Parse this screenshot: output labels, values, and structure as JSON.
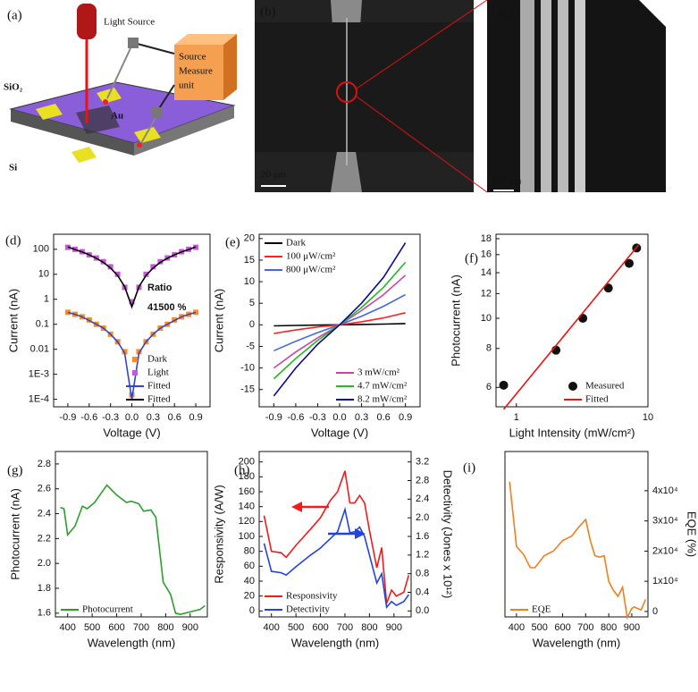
{
  "panels": {
    "a": {
      "label": "(a)",
      "light_source": "Light Source",
      "smu": [
        "Source",
        "Measure",
        "unit"
      ],
      "sio2": "SiO₂",
      "au": "Au",
      "si": "Si"
    },
    "b": {
      "label": "(b)",
      "scale": "20 μm"
    },
    "c": {
      "label": "(c)",
      "scale": "400 nm"
    }
  },
  "chart_data": [
    {
      "type": "line",
      "panel_label": "(d)",
      "xlabel": "Voltage (V)",
      "ylabel": "Current (nA)",
      "ylog": true,
      "xlim": [
        -1.1,
        1.1
      ],
      "ylim": [
        5e-05,
        400
      ],
      "xticks": [
        -0.9,
        -0.6,
        -0.3,
        {
          "value": 0,
          "label": "0.0"
        },
        0.3,
        0.6,
        0.9
      ],
      "yticks": [
        {
          "value": 0.0001,
          "label": "1E-4"
        },
        {
          "value": 0.001,
          "label": "1E-3"
        },
        0.01,
        0.1,
        1,
        10,
        100
      ],
      "annotations": [
        "Ratio",
        "41500 %"
      ],
      "legend_loc": "lower right",
      "x": [
        -0.9,
        -0.8,
        -0.7,
        -0.6,
        -0.5,
        -0.4,
        -0.3,
        -0.2,
        -0.1,
        0,
        0.1,
        0.2,
        0.3,
        0.4,
        0.5,
        0.6,
        0.7,
        0.8,
        0.9
      ],
      "series": [
        {
          "name": "Dark",
          "color": "#ff8c1a",
          "mode": "markers",
          "values": [
            0.3,
            0.25,
            0.2,
            0.15,
            0.1,
            0.07,
            0.04,
            0.02,
            0.008,
            0.00015,
            0.008,
            0.02,
            0.04,
            0.07,
            0.1,
            0.15,
            0.2,
            0.25,
            0.3
          ]
        },
        {
          "name": "Light",
          "color": "#cc55dd",
          "mode": "markers",
          "values": [
            120,
            100,
            80,
            60,
            45,
            32,
            20,
            10,
            3,
            0.8,
            3,
            10,
            20,
            32,
            45,
            60,
            80,
            100,
            120
          ]
        },
        {
          "name": "Fitted",
          "color": "#3344cc",
          "mode": "lines",
          "values": [
            0.3,
            0.25,
            0.2,
            0.14,
            0.1,
            0.07,
            0.04,
            0.02,
            0.007,
            0.0001,
            0.007,
            0.02,
            0.04,
            0.07,
            0.1,
            0.14,
            0.2,
            0.25,
            0.3
          ]
        },
        {
          "name": "Fitted",
          "color": "#000000",
          "mode": "lines",
          "values": [
            125,
            98,
            78,
            60,
            44,
            30,
            18,
            9,
            3.2,
            0.5,
            3.2,
            9,
            18,
            30,
            44,
            60,
            78,
            98,
            125
          ]
        }
      ]
    },
    {
      "type": "line",
      "panel_label": "(e)",
      "xlabel": "Voltage (V)",
      "ylabel": "Current (nA)",
      "xlim": [
        -1.1,
        1.1
      ],
      "ylim": [
        -19,
        21
      ],
      "xticks": [
        -0.9,
        -0.6,
        -0.3,
        {
          "value": 0,
          "label": "0.0"
        },
        0.3,
        0.6,
        0.9
      ],
      "yticks": [
        -15,
        -10,
        -5,
        0,
        5,
        10,
        15,
        20
      ],
      "x": [
        -0.9,
        -0.6,
        -0.3,
        0,
        0.3,
        0.6,
        0.9
      ],
      "series": [
        {
          "name": "Dark",
          "color": "#000000",
          "mode": "lines",
          "legend_loc": "upper left",
          "values": [
            -0.25,
            -0.15,
            -0.05,
            0,
            0.08,
            0.18,
            0.3
          ]
        },
        {
          "name": "100 μW/cm²",
          "color": "#ff2020",
          "mode": "lines",
          "legend_loc": "upper left",
          "values": [
            -2,
            -1.2,
            -0.5,
            0,
            0.7,
            1.6,
            2.8
          ]
        },
        {
          "name": "800 μW/cm²",
          "color": "#4169e1",
          "mode": "lines",
          "legend_loc": "upper left",
          "values": [
            -6,
            -3.8,
            -1.8,
            0,
            2,
            4.3,
            7
          ]
        },
        {
          "name": "3 mW/cm²",
          "color": "#cc44aa",
          "mode": "lines",
          "legend_loc": "lower right",
          "values": [
            -10,
            -6.3,
            -3,
            0,
            3.3,
            7,
            11.5
          ]
        },
        {
          "name": "4.7 mW/cm²",
          "color": "#22bb22",
          "mode": "lines",
          "legend_loc": "lower right",
          "values": [
            -12.5,
            -7.8,
            -3.6,
            0,
            4,
            8.7,
            14.5
          ]
        },
        {
          "name": "8.2 mW/cm²",
          "color": "#0a0a8c",
          "mode": "lines",
          "legend_loc": "lower right",
          "values": [
            -16.5,
            -10,
            -4.5,
            0,
            5,
            11,
            19
          ]
        }
      ]
    },
    {
      "type": "line",
      "panel_label": "(f)",
      "xlabel": "Light Intensity (mW/cm²)",
      "ylabel": "Photocurrent (nA)",
      "xlog": true,
      "ylog": true,
      "xlim": [
        0.7,
        10
      ],
      "ylim": [
        5.2,
        18.6
      ],
      "xticks": [
        1,
        10
      ],
      "yticks": [
        6,
        8,
        10,
        12,
        14,
        16,
        18
      ],
      "legend_loc": "lower right",
      "series": [
        {
          "name": "Measured",
          "color": "#111111",
          "mode": "markers",
          "marker": "circle",
          "x": [
            0.8,
            2,
            3.2,
            5,
            7.2,
            8.2
          ],
          "values": [
            6.1,
            7.9,
            10,
            12.5,
            15,
            16.8
          ]
        },
        {
          "name": "Fitted",
          "color": "#ee1111",
          "mode": "lines",
          "x": [
            0.8,
            8.5
          ],
          "values": [
            5.1,
            17.2
          ]
        }
      ]
    },
    {
      "type": "line",
      "panel_label": "(g)",
      "xlabel": "Wavelength (nm)",
      "ylabel": "Photocurrent (nA)",
      "xlim": [
        350,
        970
      ],
      "ylim": [
        1.57,
        2.9
      ],
      "xticks": [
        400,
        500,
        600,
        700,
        800,
        900
      ],
      "yticks": [
        1.6,
        1.8,
        {
          "value": 2,
          "label": "2.0"
        },
        2.2,
        2.4,
        2.6,
        2.8
      ],
      "legend_loc": "lower left",
      "x": [
        370,
        385,
        400,
        430,
        460,
        480,
        510,
        560,
        600,
        640,
        660,
        690,
        710,
        740,
        760,
        790,
        820,
        840,
        860,
        900,
        940,
        960
      ],
      "series": [
        {
          "name": "Photocurrent",
          "color": "#2aa02a",
          "mode": "lines",
          "values": [
            2.45,
            2.44,
            2.23,
            2.3,
            2.46,
            2.44,
            2.49,
            2.63,
            2.55,
            2.49,
            2.5,
            2.48,
            2.42,
            2.43,
            2.37,
            1.85,
            1.75,
            1.6,
            1.59,
            1.61,
            1.63,
            1.66
          ]
        }
      ]
    },
    {
      "type": "line",
      "panel_label": "(h)",
      "xlabel": "Wavelength (nm)",
      "ylabel": "Responsivity (A/W)",
      "y2label": "Detectivity (Jones x 10¹²)",
      "xlim": [
        350,
        970
      ],
      "ylim": [
        -8,
        214
      ],
      "y2lim": [
        -0.128,
        3.424
      ],
      "xticks": [
        400,
        500,
        600,
        700,
        800,
        900
      ],
      "yticks": [
        0,
        20,
        40,
        60,
        80,
        100,
        120,
        140,
        160,
        180,
        200
      ],
      "y2ticks": [
        {
          "value": 0,
          "label": "0.0"
        },
        0.4,
        0.8,
        1.2,
        1.6,
        {
          "value": 2,
          "label": "2.0"
        },
        2.4,
        2.8,
        3.2
      ],
      "legend_loc": "lower left",
      "x": [
        370,
        400,
        440,
        460,
        500,
        560,
        600,
        640,
        670,
        700,
        720,
        740,
        760,
        780,
        800,
        830,
        850,
        870,
        890,
        910,
        940,
        960
      ],
      "series": [
        {
          "name": "Responsivity",
          "color": "#ee1c1c",
          "mode": "lines",
          "values": [
            128,
            80,
            78,
            72,
            88,
            110,
            125,
            148,
            160,
            188,
            145,
            145,
            155,
            145,
            108,
            58,
            85,
            10,
            28,
            20,
            25,
            48
          ]
        },
        {
          "name": "Detectivity",
          "color": "#2244dd",
          "mode": "lines",
          "axis": "y2",
          "values": [
            1.45,
            0.85,
            0.82,
            0.77,
            0.95,
            1.2,
            1.35,
            1.55,
            1.7,
            2.18,
            1.68,
            1.7,
            1.8,
            1.6,
            1.2,
            0.6,
            0.8,
            0.08,
            0.2,
            0.12,
            0.2,
            0.35
          ]
        }
      ]
    },
    {
      "type": "line",
      "panel_label": "(i)",
      "xlabel": "Wavelength (nm)",
      "ylabel": "EQE (%)",
      "yaxis": "right",
      "xlim": [
        350,
        970
      ],
      "ylim": [
        -1800,
        53000
      ],
      "xticks": [
        400,
        500,
        600,
        700,
        800,
        900
      ],
      "yticks": [
        0,
        {
          "value": 10000,
          "label": "1x10⁴"
        },
        {
          "value": 20000,
          "label": "2x10⁴"
        },
        {
          "value": 30000,
          "label": "3x10⁴"
        },
        {
          "value": 40000,
          "label": "4x10⁴"
        }
      ],
      "legend_loc": "lower left",
      "x": [
        370,
        400,
        430,
        460,
        480,
        520,
        560,
        600,
        640,
        670,
        700,
        720,
        740,
        760,
        780,
        800,
        820,
        840,
        860,
        880,
        900,
        910,
        940,
        960
      ],
      "series": [
        {
          "name": "EQE",
          "color": "#f07f1e",
          "mode": "lines",
          "values": [
            43000,
            21500,
            19000,
            14500,
            14500,
            18500,
            20000,
            23500,
            25000,
            28000,
            30500,
            23500,
            18500,
            18000,
            18500,
            10000,
            7000,
            5000,
            8000,
            -2000,
            1000,
            1500,
            500,
            4000
          ]
        }
      ]
    }
  ]
}
